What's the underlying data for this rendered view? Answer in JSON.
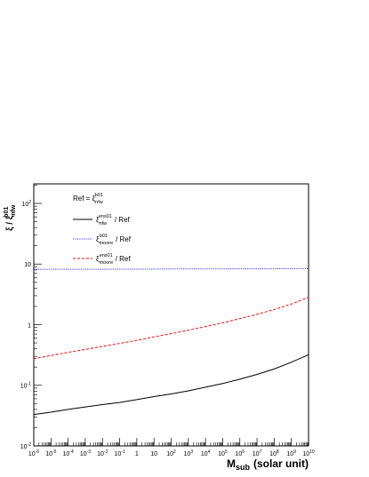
{
  "chart_data": {
    "type": "line",
    "x_label": "M",
    "x_label_sub": "sub",
    "x_label_suffix": "(solar unit)",
    "y_label": "ξ / ξ",
    "y_label_sub": "nfw",
    "y_label_sup": "b01",
    "legend_title": "Ref = ξ",
    "legend_title_sub": "nfw",
    "legend_title_sup": "b01",
    "x": [
      1e-06,
      1e-05,
      0.0001,
      0.001,
      0.01,
      0.1,
      1,
      10,
      100,
      1000.0,
      10000.0,
      100000.0,
      1000000.0,
      10000000.0,
      100000000.0,
      1000000000.0,
      10000000000.0
    ],
    "series": [
      {
        "name": "ξ",
        "name_sub": "nfw",
        "name_sup": "ens01",
        "name_suffix": "/ Ref",
        "color": "#000000",
        "style": "solid",
        "values": [
          0.033,
          0.036,
          0.04,
          0.044,
          0.048,
          0.052,
          0.058,
          0.065,
          0.072,
          0.081,
          0.093,
          0.107,
          0.126,
          0.151,
          0.186,
          0.24,
          0.32
        ]
      },
      {
        "name": "ξ",
        "name_sub": "moore",
        "name_sup": "b01",
        "name_suffix": "/ Ref",
        "color": "#3333ff",
        "style": "dotted",
        "values": [
          8.2,
          8.2,
          8.2,
          8.2,
          8.2,
          8.25,
          8.25,
          8.25,
          8.3,
          8.3,
          8.3,
          8.3,
          8.35,
          8.35,
          8.35,
          8.4,
          8.4
        ]
      },
      {
        "name": "ξ",
        "name_sub": "moore",
        "name_sup": "ens01",
        "name_suffix": "/ Ref",
        "color": "#ff0000",
        "style": "dashed",
        "values": [
          0.275,
          0.31,
          0.35,
          0.39,
          0.44,
          0.49,
          0.55,
          0.63,
          0.71,
          0.81,
          0.93,
          1.07,
          1.26,
          1.48,
          1.78,
          2.19,
          2.82
        ]
      }
    ],
    "xlog": true,
    "ylog": true,
    "xlim": [
      1e-06,
      10000000000.0
    ],
    "ylim": [
      0.01,
      210
    ],
    "xticks": [
      {
        "value": 1e-06,
        "label": "10",
        "exponent": "-6"
      },
      {
        "value": 1e-05,
        "label": "10",
        "exponent": "-5"
      },
      {
        "value": 0.0001,
        "label": "10",
        "exponent": "-4"
      },
      {
        "value": 0.001,
        "label": "10",
        "exponent": "-3"
      },
      {
        "value": 0.01,
        "label": "10",
        "exponent": "-2"
      },
      {
        "value": 0.1,
        "label": "10",
        "exponent": "-1"
      },
      1,
      10,
      {
        "value": 100,
        "label": "10",
        "exponent": "2"
      },
      {
        "value": 1000.0,
        "label": "10",
        "exponent": "3"
      },
      {
        "value": 10000.0,
        "label": "10",
        "exponent": "4"
      },
      {
        "value": 100000.0,
        "label": "10",
        "exponent": "5"
      },
      {
        "value": 1000000.0,
        "label": "10",
        "exponent": "6"
      },
      {
        "value": 10000000.0,
        "label": "10",
        "exponent": "7"
      },
      {
        "value": 100000000.0,
        "label": "10",
        "exponent": "8"
      },
      {
        "value": 1000000000.0,
        "label": "10",
        "exponent": "9"
      },
      {
        "value": 10000000000.0,
        "label": "10",
        "exponent": "10"
      }
    ],
    "yticks": [
      {
        "value": 0.01,
        "label": "10",
        "exponent": "-2"
      },
      {
        "value": 0.1,
        "label": "10",
        "exponent": "-1"
      },
      1,
      10,
      {
        "value": 100,
        "label": "10",
        "exponent": "2"
      }
    ]
  }
}
